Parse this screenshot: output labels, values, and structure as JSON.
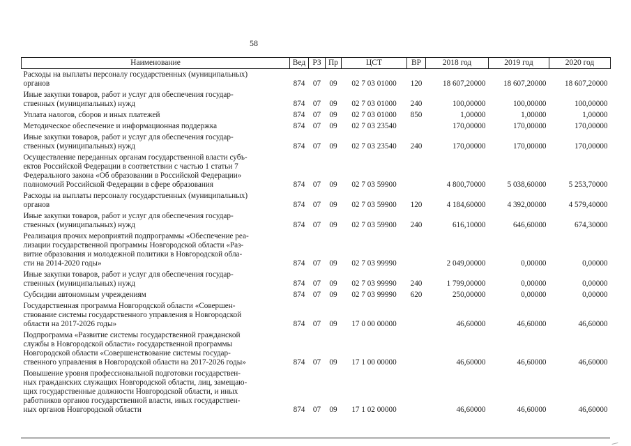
{
  "page": {
    "number": "58"
  },
  "table": {
    "headers": [
      "Наименование",
      "Вед",
      "РЗ",
      "Пр",
      "ЦСТ",
      "ВР",
      "2018 год",
      "2019 год",
      "2020 год"
    ],
    "rows": [
      {
        "name": "Расходы на выплаты персоналу государственных (муниципальных)\nорганов",
        "ved": "874",
        "rz": "07",
        "pr": "09",
        "cst": "02 7 03 01000",
        "vr": "120",
        "y2018": "18 607,20000",
        "y2019": "18 607,20000",
        "y2020": "18 607,20000"
      },
      {
        "name": "Иные закупки товаров, работ и услуг для обеспечения государ-\nственных (муниципальных) нужд",
        "ved": "874",
        "rz": "07",
        "pr": "09",
        "cst": "02 7 03 01000",
        "vr": "240",
        "y2018": "100,00000",
        "y2019": "100,00000",
        "y2020": "100,00000"
      },
      {
        "name": "Уплата налогов, сборов и иных платежей",
        "ved": "874",
        "rz": "07",
        "pr": "09",
        "cst": "02 7 03 01000",
        "vr": "850",
        "y2018": "1,00000",
        "y2019": "1,00000",
        "y2020": "1,00000"
      },
      {
        "name": "Методическое обеспечение и информационная поддержка",
        "ved": "874",
        "rz": "07",
        "pr": "09",
        "cst": "02 7 03 23540",
        "vr": "",
        "y2018": "170,00000",
        "y2019": "170,00000",
        "y2020": "170,00000"
      },
      {
        "name": "Иные закупки товаров, работ и услуг для обеспечения государ-\nственных (муниципальных) нужд",
        "ved": "874",
        "rz": "07",
        "pr": "09",
        "cst": "02 7 03 23540",
        "vr": "240",
        "y2018": "170,00000",
        "y2019": "170,00000",
        "y2020": "170,00000"
      },
      {
        "name": "Осуществление переданных органам государственной власти субъ-\nектов Российской Федерации в соответствии с частью 1 статьи 7\nФедерального закона «Об образовании в Российской Федерации»\nполномочий Российской Федерации в сфере образования",
        "ved": "874",
        "rz": "07",
        "pr": "09",
        "cst": "02 7 03 59900",
        "vr": "",
        "y2018": "4 800,70000",
        "y2019": "5 038,60000",
        "y2020": "5 253,70000"
      },
      {
        "name": "Расходы на выплаты персоналу государственных (муниципальных)\nорганов",
        "ved": "874",
        "rz": "07",
        "pr": "09",
        "cst": "02 7 03 59900",
        "vr": "120",
        "y2018": "4 184,60000",
        "y2019": "4 392,00000",
        "y2020": "4 579,40000"
      },
      {
        "name": "Иные закупки товаров, работ и услуг для обеспечения государ-\nственных (муниципальных) нужд",
        "ved": "874",
        "rz": "07",
        "pr": "09",
        "cst": "02 7 03 59900",
        "vr": "240",
        "y2018": "616,10000",
        "y2019": "646,60000",
        "y2020": "674,30000"
      },
      {
        "name": "Реализация прочих мероприятий подпрограммы «Обеспечение реа-\nлизации государственной программы Новгородской области «Раз-\nвитие образования и молодежной политики в Новгородской обла-\nсти на 2014-2020 годы»",
        "ved": "874",
        "rz": "07",
        "pr": "09",
        "cst": "02 7 03 99990",
        "vr": "",
        "y2018": "2 049,00000",
        "y2019": "0,00000",
        "y2020": "0,00000"
      },
      {
        "name": "Иные закупки товаров, работ и услуг для обеспечения государ-\nственных (муниципальных) нужд",
        "ved": "874",
        "rz": "07",
        "pr": "09",
        "cst": "02 7 03 99990",
        "vr": "240",
        "y2018": "1 799,00000",
        "y2019": "0,00000",
        "y2020": "0,00000"
      },
      {
        "name": "Субсидии автономным учреждениям",
        "ved": "874",
        "rz": "07",
        "pr": "09",
        "cst": "02 7 03 99990",
        "vr": "620",
        "y2018": "250,00000",
        "y2019": "0,00000",
        "y2020": "0,00000"
      },
      {
        "name": "Государственная программа Новгородской области «Совершен-\nствование системы государственного управления в Новгородской\nобласти на 2017-2026 годы»",
        "ved": "874",
        "rz": "07",
        "pr": "09",
        "cst": "17 0 00 00000",
        "vr": "",
        "y2018": "46,60000",
        "y2019": "46,60000",
        "y2020": "46,60000"
      },
      {
        "name": "Подпрограмма «Развитие системы государственной гражданской\nслужбы в Новгородской области» государственной программы\nНовгородской области «Совершенствование системы государ-\nственного управления в Новгородской области на 2017-2026 годы»",
        "ved": "874",
        "rz": "07",
        "pr": "09",
        "cst": "17 1 00 00000",
        "vr": "",
        "y2018": "46,60000",
        "y2019": "46,60000",
        "y2020": "46,60000"
      },
      {
        "name": "Повышение уровня профессиональной подготовки государствен-\nных гражданских служащих Новгородской области, лиц, замещаю-\nщих государственные должности Новгородской области, и иных\nработников органов государственной власти, иных государствен-\nных органов Новгородской области",
        "ved": "874",
        "rz": "07",
        "pr": "09",
        "cst": "17 1 02 00000",
        "vr": "",
        "y2018": "46,60000",
        "y2019": "46,60000",
        "y2020": "46,60000"
      }
    ]
  }
}
